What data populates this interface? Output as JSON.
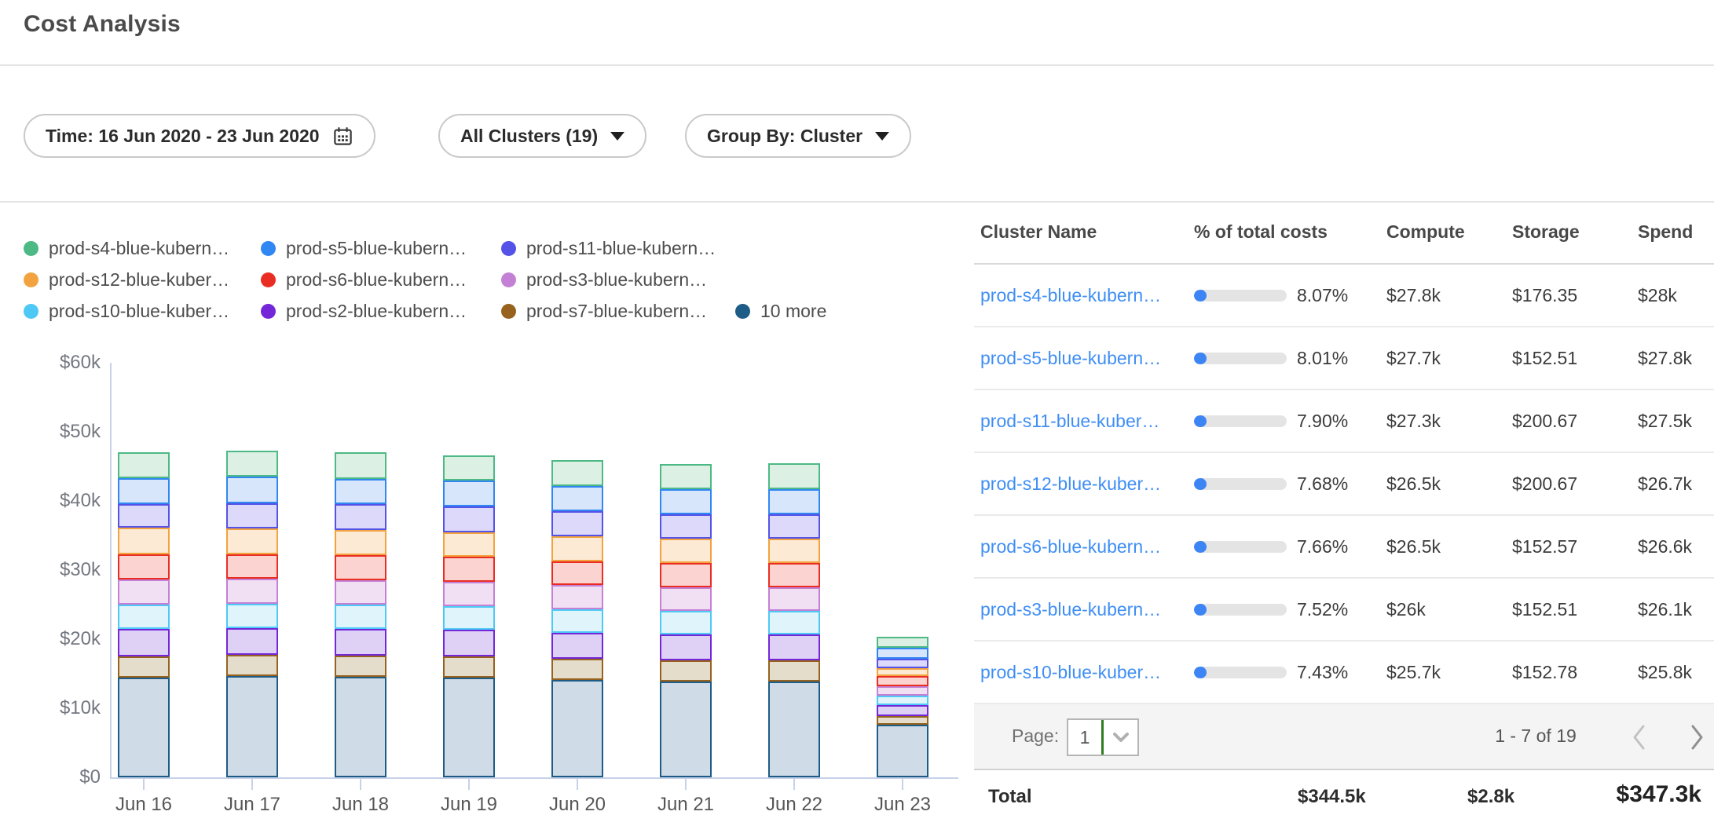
{
  "page": {
    "title": "Cost Analysis"
  },
  "filters": {
    "time": {
      "label": "Time: 16 Jun 2020 - 23 Jun 2020"
    },
    "clusters": {
      "label": "All Clusters (19)"
    },
    "group_by": {
      "label": "Group By: Cluster"
    }
  },
  "chart_data": {
    "type": "bar",
    "stacked": true,
    "title": "",
    "xlabel": "",
    "ylabel": "",
    "x": [
      "Jun 16",
      "Jun 17",
      "Jun 18",
      "Jun 19",
      "Jun 20",
      "Jun 21",
      "Jun 22",
      "Jun 23"
    ],
    "y_ticks": [
      "$60k",
      "$50k",
      "$40k",
      "$30k",
      "$20k",
      "$10k",
      "$0"
    ],
    "ylim_k_usd": [
      0,
      60
    ],
    "grid": false,
    "legend_position": "top-left",
    "units": "thousand USD per day (estimated from bar heights)",
    "stack_order_bottom_to_top": [
      "more10",
      "s7",
      "s2",
      "s10",
      "s3",
      "s6",
      "s12",
      "s11",
      "s5",
      "s4"
    ],
    "series": [
      {
        "id": "s4",
        "legend_label": "prod-s4-blue-kubern…",
        "color": "#4db985",
        "fill": "#ddf0e4",
        "values": [
          3.7,
          3.8,
          3.8,
          3.7,
          3.7,
          3.6,
          3.7,
          1.5
        ]
      },
      {
        "id": "s5",
        "legend_label": "prod-s5-blue-kubern…",
        "color": "#3187f2",
        "fill": "#d7e6fb",
        "values": [
          3.8,
          3.8,
          3.7,
          3.7,
          3.7,
          3.6,
          3.6,
          1.6
        ]
      },
      {
        "id": "s11",
        "legend_label": "prod-s11-blue-kubern…",
        "color": "#5552e8",
        "fill": "#dcd9fa",
        "values": [
          3.4,
          3.7,
          3.7,
          3.7,
          3.6,
          3.6,
          3.6,
          1.4
        ]
      },
      {
        "id": "s12",
        "legend_label": "prod-s12-blue-kuber…",
        "color": "#f2a33f",
        "fill": "#fcead4",
        "values": [
          3.8,
          3.7,
          3.7,
          3.6,
          3.6,
          3.5,
          3.5,
          1.1
        ]
      },
      {
        "id": "s6",
        "legend_label": "prod-s6-blue-kubern…",
        "color": "#ea2d23",
        "fill": "#fbd4d1",
        "values": [
          3.7,
          3.6,
          3.6,
          3.6,
          3.5,
          3.5,
          3.5,
          1.5
        ]
      },
      {
        "id": "s3",
        "legend_label": "prod-s3-blue-kubern…",
        "color": "#c480d4",
        "fill": "#f1e0f3",
        "values": [
          3.6,
          3.6,
          3.5,
          3.5,
          3.5,
          3.4,
          3.4,
          1.4
        ]
      },
      {
        "id": "s10",
        "legend_label": "prod-s10-blue-kuber…",
        "color": "#4ec9f5",
        "fill": "#dff5fb",
        "values": [
          3.5,
          3.5,
          3.5,
          3.5,
          3.4,
          3.4,
          3.4,
          1.4
        ]
      },
      {
        "id": "s2",
        "legend_label": "prod-s2-blue-kubern…",
        "color": "#7327d8",
        "fill": "#ded1f5",
        "values": [
          4.0,
          3.9,
          3.9,
          3.8,
          3.8,
          3.8,
          3.8,
          1.5
        ]
      },
      {
        "id": "s7",
        "legend_label": "prod-s7-blue-kubern…",
        "color": "#96621d",
        "fill": "#e5ddcb",
        "values": [
          3.1,
          3.1,
          3.1,
          3.1,
          3.0,
          3.0,
          3.0,
          1.3
        ]
      },
      {
        "id": "more10",
        "legend_label": "10 more",
        "color": "#1d5c86",
        "fill": "#cfdbe7",
        "values": [
          14.4,
          14.6,
          14.5,
          14.4,
          14.1,
          13.9,
          13.9,
          7.6
        ]
      }
    ]
  },
  "table": {
    "columns": [
      "Cluster Name",
      "% of total costs",
      "Compute",
      "Storage",
      "Spend"
    ],
    "rows": [
      {
        "name": "prod-s4-blue-kubern…",
        "pct": "8.07%",
        "compute": "$27.8k",
        "storage": "$176.35",
        "spend": "$28k"
      },
      {
        "name": "prod-s5-blue-kubern…",
        "pct": "8.01%",
        "compute": "$27.7k",
        "storage": "$152.51",
        "spend": "$27.8k"
      },
      {
        "name": "prod-s11-blue-kuber…",
        "pct": "7.90%",
        "compute": "$27.3k",
        "storage": "$200.67",
        "spend": "$27.5k"
      },
      {
        "name": "prod-s12-blue-kuber…",
        "pct": "7.68%",
        "compute": "$26.5k",
        "storage": "$200.67",
        "spend": "$26.7k"
      },
      {
        "name": "prod-s6-blue-kubern…",
        "pct": "7.66%",
        "compute": "$26.5k",
        "storage": "$152.57",
        "spend": "$26.6k"
      },
      {
        "name": "prod-s3-blue-kubern…",
        "pct": "7.52%",
        "compute": "$26k",
        "storage": "$152.51",
        "spend": "$26.1k"
      },
      {
        "name": "prod-s10-blue-kuber…",
        "pct": "7.43%",
        "compute": "$25.7k",
        "storage": "$152.78",
        "spend": "$25.8k"
      }
    ],
    "pagination": {
      "page_label": "Page:",
      "page_value": "1",
      "range": "1 - 7 of 19"
    },
    "totals": {
      "label": "Total",
      "compute": "$344.5k",
      "storage": "$2.8k",
      "spend": "$347.3k"
    }
  },
  "colors": {
    "link_blue": "#3f8ef5",
    "progress_fill": "#3d84f5",
    "progress_track": "#e4e4e4",
    "axis": "#c7d2ea",
    "select_green_bar": "#2e7d1f"
  }
}
